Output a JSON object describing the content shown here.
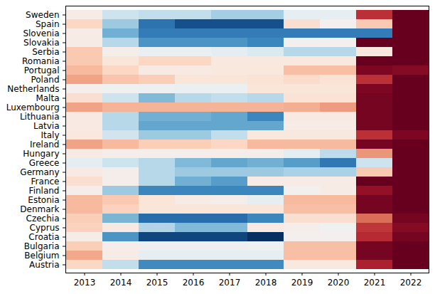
{
  "chart_data": {
    "type": "heatmap",
    "x": [
      2013,
      2014,
      2015,
      2016,
      2017,
      2018,
      2019,
      2020,
      2021,
      2022
    ],
    "categories": [
      "Sweden",
      "Spain",
      "Slovenia",
      "Slovakia",
      "Serbia",
      "Romania",
      "Portugal",
      "Poland",
      "Netherlands",
      "Malta",
      "Luxembourg",
      "Lithuania",
      "Latvia",
      "Italy",
      "Ireland",
      "Hungary",
      "Greece",
      "Germany",
      "France",
      "Finland",
      "Estonia",
      "Denmark",
      "Czechia",
      "Cyprus",
      "Croatia",
      "Bulgaria",
      "Belgium",
      "Austria"
    ],
    "color": "RdBu_r",
    "cells": [
      [
        5.3,
        4.0,
        3.8,
        3.8,
        3.3,
        3.3,
        4.6,
        4.6,
        8.7,
        10.0
      ],
      [
        6.0,
        3.2,
        1.3,
        0.6,
        0.6,
        0.6,
        5.8,
        5.1,
        6.3,
        10.0
      ],
      [
        5.3,
        2.6,
        1.5,
        1.5,
        1.5,
        1.5,
        1.5,
        1.5,
        1.5,
        10.0
      ],
      [
        5.3,
        3.6,
        2.0,
        2.0,
        2.0,
        1.7,
        5.0,
        5.0,
        10.0,
        10.0
      ],
      [
        6.3,
        5.2,
        4.7,
        4.7,
        4.5,
        4.3,
        3.6,
        3.6,
        5.5,
        10.0
      ],
      [
        6.3,
        5.6,
        6.0,
        6.0,
        5.5,
        5.5,
        5.5,
        5.5,
        10.0,
        10.0
      ],
      [
        6.6,
        6.0,
        5.4,
        5.4,
        5.5,
        5.5,
        6.5,
        6.5,
        9.7,
        9.6
      ],
      [
        7.0,
        6.4,
        6.2,
        5.6,
        5.6,
        5.7,
        5.9,
        5.7,
        8.7,
        10.0
      ],
      [
        5.1,
        4.9,
        4.8,
        4.7,
        4.7,
        5.6,
        5.6,
        5.6,
        9.7,
        10.0
      ],
      [
        5.8,
        4.0,
        2.8,
        3.6,
        3.8,
        3.6,
        5.7,
        5.7,
        9.8,
        10.0
      ],
      [
        7.0,
        6.7,
        6.7,
        6.7,
        6.7,
        6.7,
        6.8,
        7.1,
        9.8,
        10.0
      ],
      [
        5.4,
        3.6,
        2.6,
        2.6,
        2.4,
        1.7,
        5.4,
        5.4,
        9.8,
        10.0
      ],
      [
        5.4,
        3.6,
        2.4,
        2.4,
        2.4,
        2.4,
        5.3,
        5.3,
        9.8,
        10.0
      ],
      [
        5.5,
        4.1,
        3.2,
        3.2,
        3.8,
        5.5,
        5.5,
        5.5,
        8.7,
        9.7
      ],
      [
        7.0,
        6.6,
        6.2,
        6.2,
        6.0,
        6.6,
        6.6,
        6.6,
        9.8,
        10.0
      ],
      [
        5.4,
        5.2,
        5.2,
        5.2,
        5.2,
        5.2,
        4.5,
        3.7,
        7.2,
        10.0
      ],
      [
        4.5,
        4.0,
        3.6,
        2.8,
        2.4,
        2.6,
        2.2,
        1.4,
        4.0,
        10.0
      ],
      [
        5.4,
        5.2,
        3.6,
        3.2,
        3.2,
        3.2,
        3.4,
        3.4,
        6.3,
        10.0
      ],
      [
        5.8,
        5.2,
        3.6,
        2.6,
        2.2,
        5.3,
        5.3,
        5.3,
        10.0,
        10.0
      ],
      [
        5.2,
        3.2,
        1.7,
        1.7,
        1.7,
        1.7,
        5.0,
        5.3,
        9.4,
        10.0
      ],
      [
        6.6,
        6.3,
        5.6,
        5.3,
        5.2,
        4.6,
        6.6,
        6.6,
        9.8,
        10.0
      ],
      [
        6.6,
        6.1,
        5.6,
        5.6,
        5.6,
        5.6,
        6.5,
        6.5,
        9.8,
        10.0
      ],
      [
        6.2,
        2.7,
        1.2,
        1.2,
        1.2,
        1.7,
        5.8,
        5.8,
        7.8,
        9.8
      ],
      [
        6.1,
        5.4,
        3.5,
        2.8,
        2.8,
        5.4,
        5.2,
        4.9,
        8.6,
        9.6
      ],
      [
        5.3,
        2.0,
        0.4,
        0.4,
        0.4,
        0.0,
        5.1,
        5.1,
        8.8,
        9.8
      ],
      [
        6.2,
        5.2,
        4.8,
        4.8,
        4.8,
        4.9,
        6.5,
        6.5,
        9.8,
        10.0
      ],
      [
        6.9,
        5.3,
        4.6,
        4.6,
        4.6,
        4.6,
        6.5,
        6.5,
        9.8,
        10.0
      ],
      [
        6.0,
        3.8,
        1.8,
        1.8,
        1.8,
        1.8,
        5.5,
        5.5,
        9.0,
        10.0
      ]
    ]
  }
}
